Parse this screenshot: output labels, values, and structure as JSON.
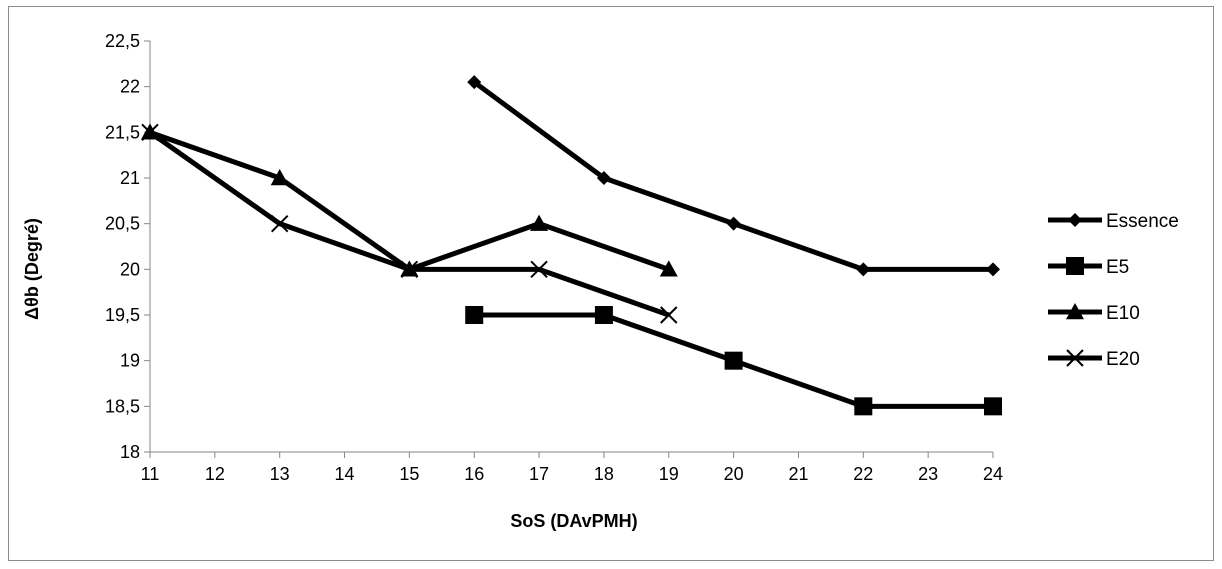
{
  "chart_data": {
    "type": "line",
    "title": "",
    "xlabel": "SoS (DAvPMH)",
    "ylabel": "Δθb (Degré)",
    "categories": [
      "11",
      "12",
      "13",
      "14",
      "15",
      "16",
      "17",
      "18",
      "19",
      "20",
      "21",
      "22",
      "23",
      "24"
    ],
    "ylim": [
      18,
      22.5
    ],
    "y_ticks": [
      "18",
      "18,5",
      "19",
      "19,5",
      "20",
      "20,5",
      "21",
      "21,5",
      "22",
      "22,5"
    ],
    "y_tick_values": [
      18,
      18.5,
      19,
      19.5,
      20,
      20.5,
      21,
      21.5,
      22,
      22.5
    ],
    "grid": false,
    "legend_position": "right",
    "series": [
      {
        "name": "Essence",
        "marker": "diamond",
        "color": "#000000",
        "points": [
          {
            "x": "16",
            "y": 22.05
          },
          {
            "x": "18",
            "y": 21
          },
          {
            "x": "20",
            "y": 20.5
          },
          {
            "x": "22",
            "y": 20
          },
          {
            "x": "24",
            "y": 20
          }
        ]
      },
      {
        "name": "E5",
        "marker": "square",
        "color": "#000000",
        "points": [
          {
            "x": "16",
            "y": 19.5
          },
          {
            "x": "18",
            "y": 19.5
          },
          {
            "x": "20",
            "y": 19
          },
          {
            "x": "22",
            "y": 18.5
          },
          {
            "x": "24",
            "y": 18.5
          }
        ]
      },
      {
        "name": "E10",
        "marker": "triangle",
        "color": "#000000",
        "points": [
          {
            "x": "11",
            "y": 21.5
          },
          {
            "x": "13",
            "y": 21
          },
          {
            "x": "15",
            "y": 20
          },
          {
            "x": "17",
            "y": 20.5
          },
          {
            "x": "19",
            "y": 20
          }
        ]
      },
      {
        "name": "E20",
        "marker": "x",
        "color": "#000000",
        "points": [
          {
            "x": "11",
            "y": 21.5
          },
          {
            "x": "13",
            "y": 20.5
          },
          {
            "x": "15",
            "y": 20
          },
          {
            "x": "17",
            "y": 20
          },
          {
            "x": "19",
            "y": 19.5
          }
        ]
      }
    ]
  }
}
